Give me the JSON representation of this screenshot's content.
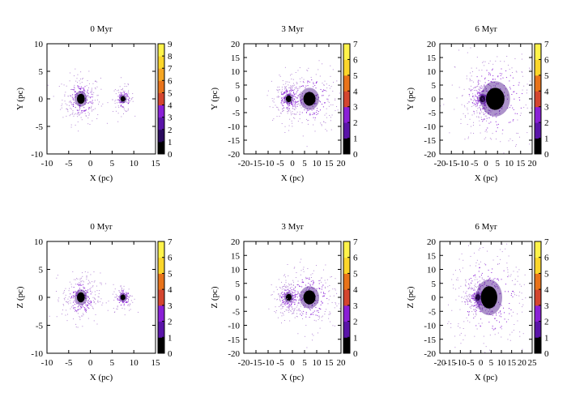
{
  "chart_data": [
    {
      "type": "scatter",
      "title": "0 Myr",
      "xlabel": "X (pc)",
      "ylabel": "Y (pc)",
      "xlim": [
        -10,
        15
      ],
      "ylim": [
        -10,
        10
      ],
      "xticks": [
        "-10",
        "-5",
        "0",
        "5",
        "10",
        "15"
      ],
      "yticks": [
        "-10",
        "-5",
        "0",
        "5",
        "10"
      ],
      "cbar_max": 9,
      "cbar_ticks": [
        "0",
        "1",
        "2",
        "3",
        "4",
        "5",
        "6",
        "7",
        "8",
        "9"
      ],
      "clusters": [
        {
          "x": -2.2,
          "y": 0,
          "core_radius": 0.9,
          "halo_radius": 2.2,
          "n_points": 260
        },
        {
          "x": 7.5,
          "y": 0,
          "core_radius": 0.5,
          "halo_radius": 1.2,
          "n_points": 120
        }
      ]
    },
    {
      "type": "scatter",
      "title": "3 Myr",
      "xlabel": "X (pc)",
      "ylabel": "Y (pc)",
      "xlim": [
        -20,
        20
      ],
      "ylim": [
        -20,
        20
      ],
      "xticks": [
        "-20",
        "-15",
        "-10",
        "-5",
        "0",
        "5",
        "10",
        "15",
        "20"
      ],
      "yticks": [
        "-20",
        "-15",
        "-10",
        "-5",
        "0",
        "5",
        "10",
        "15",
        "20"
      ],
      "cbar_max": 7,
      "cbar_ticks": [
        "0",
        "1",
        "2",
        "3",
        "4",
        "5",
        "6",
        "7"
      ],
      "clusters": [
        {
          "x": -1.5,
          "y": 0,
          "core_radius": 1.2,
          "halo_radius": 3,
          "n_points": 260
        },
        {
          "x": 7,
          "y": 0,
          "core_radius": 2.5,
          "halo_radius": 6,
          "n_points": 240
        }
      ]
    },
    {
      "type": "scatter",
      "title": "6 Myr",
      "xlabel": "X (pc)",
      "ylabel": "Y (pc)",
      "xlim": [
        -20,
        20
      ],
      "ylim": [
        -20,
        20
      ],
      "xticks": [
        "-20",
        "-15",
        "-10",
        "-5",
        "0",
        "5",
        "10",
        "15",
        "20"
      ],
      "yticks": [
        "-20",
        "-15",
        "-10",
        "-5",
        "0",
        "5",
        "10",
        "15",
        "20"
      ],
      "cbar_max": 7,
      "cbar_ticks": [
        "0",
        "1",
        "2",
        "3",
        "4",
        "5",
        "6",
        "7"
      ],
      "clusters": [
        {
          "x": -1.5,
          "y": 0,
          "core_radius": 1.2,
          "halo_radius": 3,
          "n_points": 240
        },
        {
          "x": 4,
          "y": 0,
          "core_radius": 4,
          "halo_radius": 10,
          "n_points": 320
        }
      ]
    },
    {
      "type": "scatter",
      "title": "0 Myr",
      "xlabel": "X (pc)",
      "ylabel": "Z (pc)",
      "xlim": [
        -10,
        15
      ],
      "ylim": [
        -10,
        10
      ],
      "xticks": [
        "-10",
        "-5",
        "0",
        "5",
        "10",
        "15"
      ],
      "yticks": [
        "-10",
        "-5",
        "0",
        "5",
        "10"
      ],
      "cbar_max": 7,
      "cbar_ticks": [
        "0",
        "1",
        "2",
        "3",
        "4",
        "5",
        "6",
        "7"
      ],
      "clusters": [
        {
          "x": -2.2,
          "y": 0,
          "core_radius": 0.9,
          "halo_radius": 2.2,
          "n_points": 260
        },
        {
          "x": 7.5,
          "y": 0,
          "core_radius": 0.5,
          "halo_radius": 1.2,
          "n_points": 120
        }
      ]
    },
    {
      "type": "scatter",
      "title": "3 Myr",
      "xlabel": "X (pc)",
      "ylabel": "Z (pc)",
      "xlim": [
        -20,
        20
      ],
      "ylim": [
        -20,
        20
      ],
      "xticks": [
        "-20",
        "-15",
        "-10",
        "-5",
        "0",
        "5",
        "10",
        "15",
        "20"
      ],
      "yticks": [
        "-20",
        "-15",
        "-10",
        "-5",
        "0",
        "5",
        "10",
        "15",
        "20"
      ],
      "cbar_max": 7,
      "cbar_ticks": [
        "0",
        "1",
        "2",
        "3",
        "4",
        "5",
        "6",
        "7"
      ],
      "clusters": [
        {
          "x": -1.5,
          "y": 0,
          "core_radius": 1.2,
          "halo_radius": 3,
          "n_points": 260
        },
        {
          "x": 7,
          "y": 0,
          "core_radius": 2.5,
          "halo_radius": 6,
          "n_points": 240
        }
      ]
    },
    {
      "type": "scatter",
      "title": "6 Myr",
      "xlabel": "X (pc)",
      "ylabel": "Z (pc)",
      "xlim": [
        -20,
        25
      ],
      "ylim": [
        -20,
        20
      ],
      "xticks": [
        "-20",
        "-15",
        "-10",
        "-5",
        "0",
        "5",
        "10",
        "15",
        "20",
        "25"
      ],
      "yticks": [
        "-20",
        "-15",
        "-10",
        "-5",
        "0",
        "5",
        "10",
        "15",
        "20"
      ],
      "cbar_max": 7,
      "cbar_ticks": [
        "0",
        "1",
        "2",
        "3",
        "4",
        "5",
        "6",
        "7"
      ],
      "clusters": [
        {
          "x": -1.5,
          "y": 0,
          "core_radius": 1.2,
          "halo_radius": 3,
          "n_points": 240
        },
        {
          "x": 4,
          "y": 0,
          "core_radius": 4,
          "halo_radius": 10,
          "n_points": 320
        }
      ]
    }
  ],
  "colormap": [
    "#000000",
    "#2a0a5e",
    "#5a14a8",
    "#8a1fd6",
    "#b52a8a",
    "#d4452f",
    "#e8731a",
    "#f5a623",
    "#fcd62a",
    "#fff34a"
  ]
}
